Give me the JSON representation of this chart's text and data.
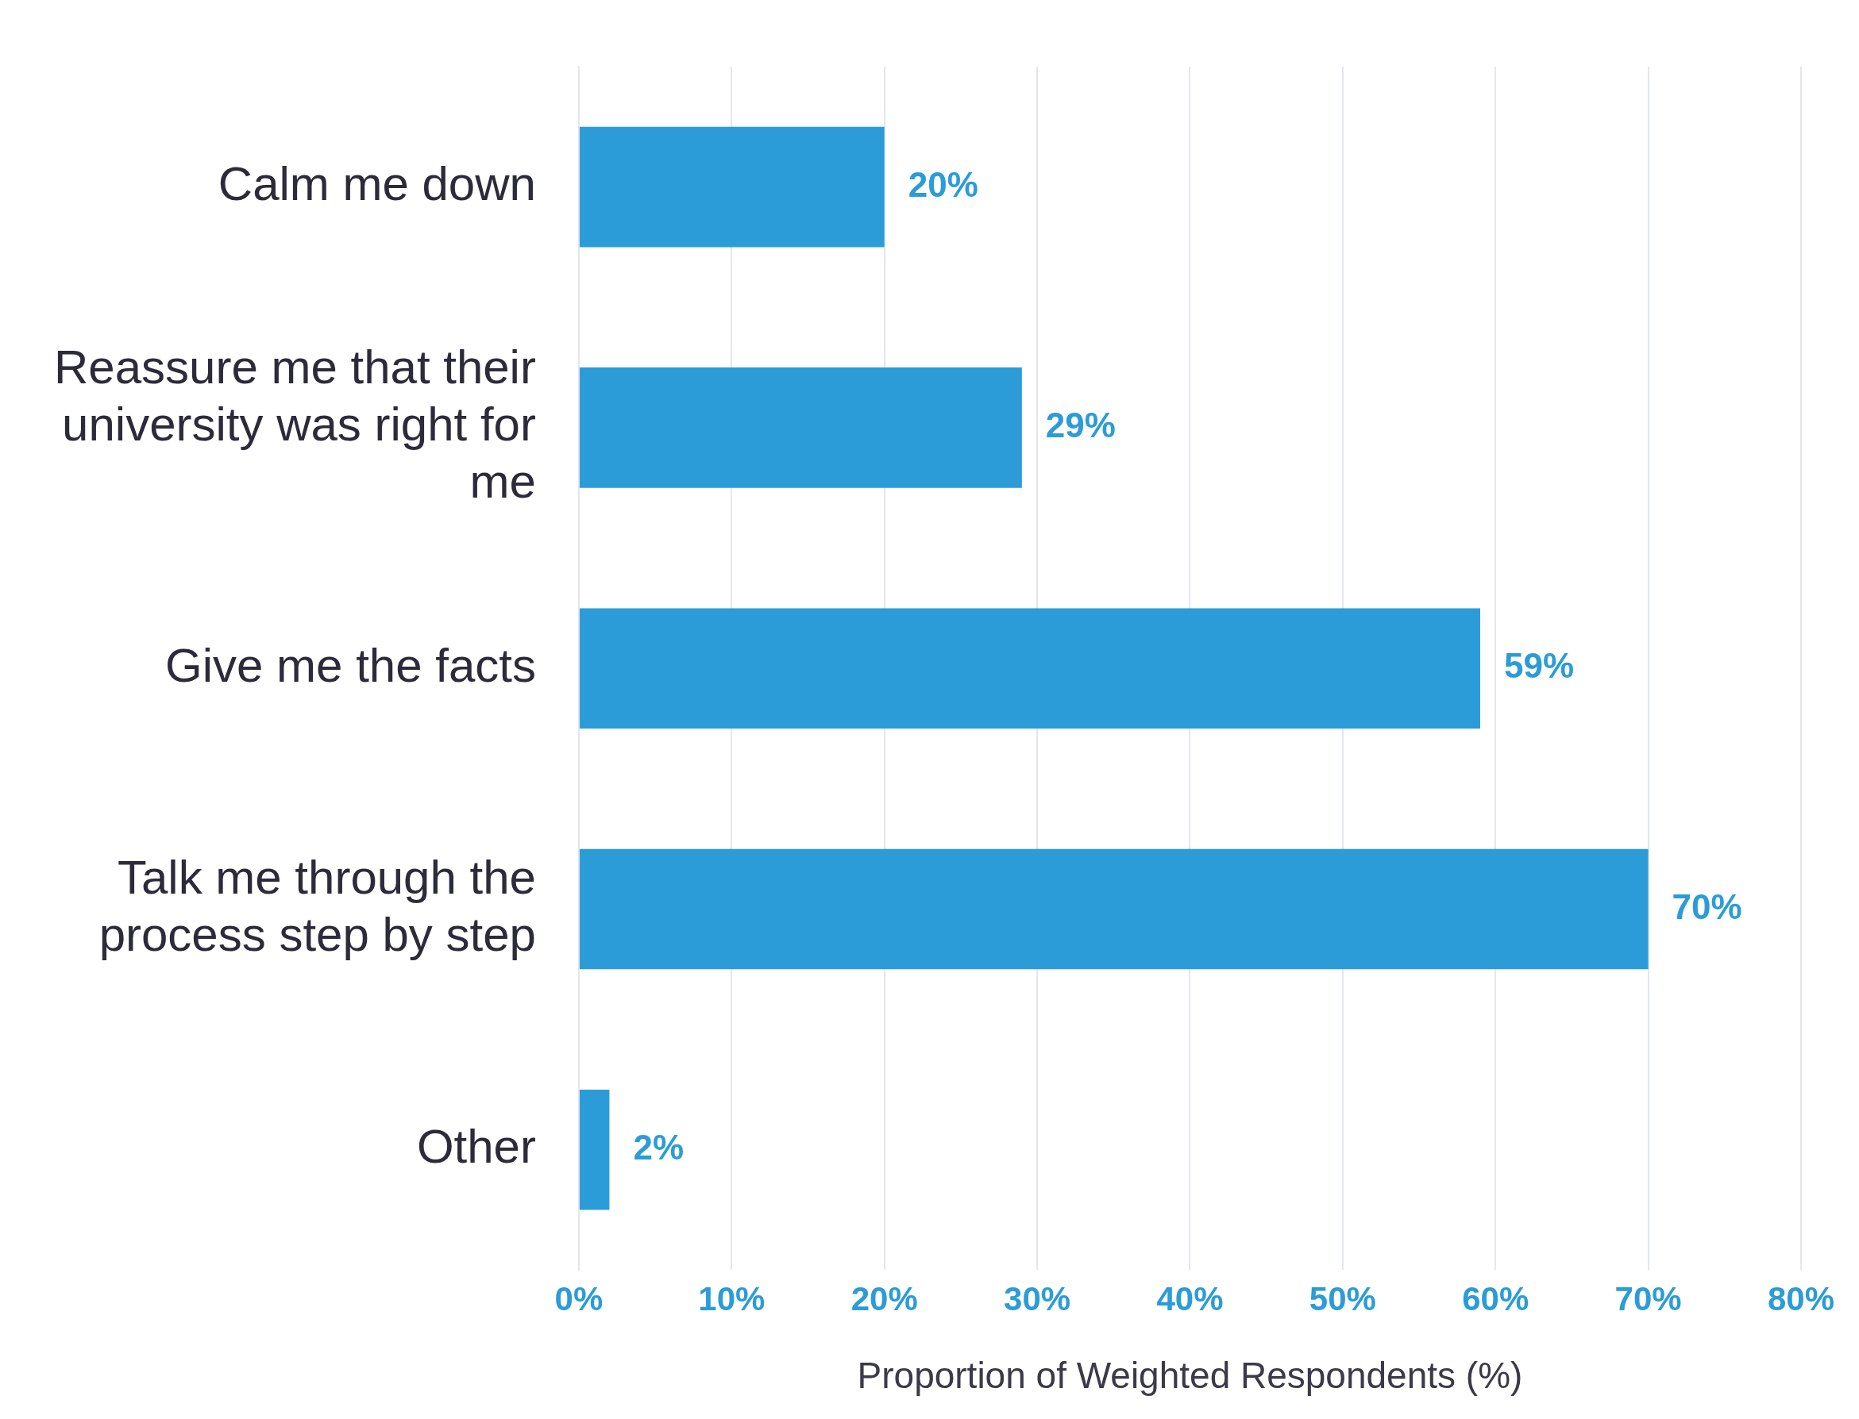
{
  "chart_data": {
    "type": "bar",
    "orientation": "horizontal",
    "xlabel": "Proportion of Weighted Respondents (%)",
    "categories": [
      "Calm me down",
      "Reassure me that their university was right for me",
      "Give me the facts",
      "Talk me through the process step by step",
      "Other"
    ],
    "values": [
      20,
      29,
      59,
      70,
      2
    ],
    "color": "#2b9cd8",
    "value_labels": [
      "20%",
      "29%",
      "59%",
      "70%",
      "2%"
    ],
    "xlim": [
      0,
      80
    ],
    "xticks": [
      {
        "value": 0,
        "label": "0%"
      },
      {
        "value": 10,
        "label": "10%"
      },
      {
        "value": 20,
        "label": "20%"
      },
      {
        "value": 30,
        "label": "30%"
      },
      {
        "value": 40,
        "label": "40%"
      },
      {
        "value": 50,
        "label": "50%"
      },
      {
        "value": 60,
        "label": "60%"
      },
      {
        "value": 70,
        "label": "70%"
      },
      {
        "value": 80,
        "label": "80%"
      }
    ],
    "grid": "x",
    "legend": false
  }
}
